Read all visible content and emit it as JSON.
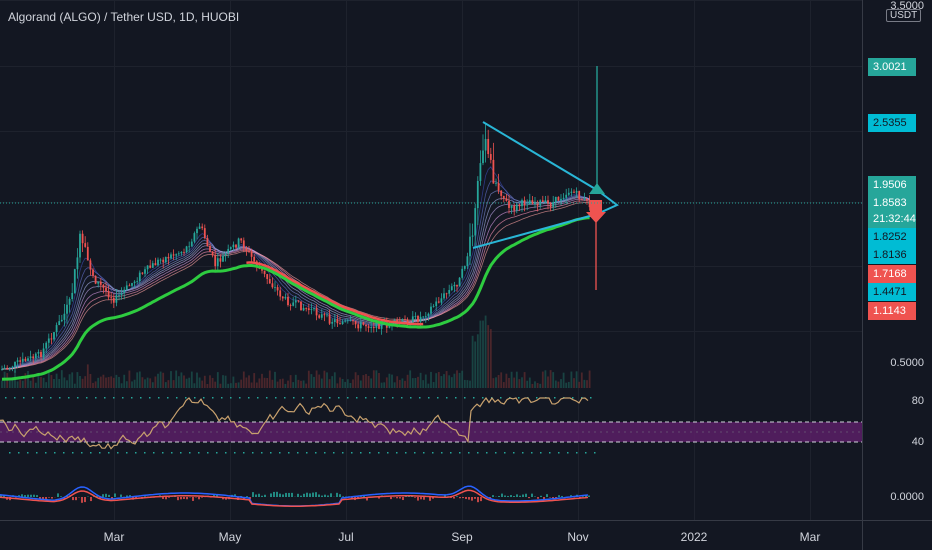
{
  "header": {
    "title": "Algorand (ALGO) / Tether USD, 1D, HUOBI"
  },
  "price_axis": {
    "top_label": "3.5000",
    "currency": "USDT",
    "label_0_5": "0.5000"
  },
  "price_badges": [
    {
      "value": "3.0021",
      "bg": "#26a69a",
      "fg": "#ffffff"
    },
    {
      "value": "2.5355",
      "bg": "#00bcd4",
      "fg": "#131722"
    },
    {
      "value": "1.9506",
      "bg": "#26a69a",
      "fg": "#ffffff"
    },
    {
      "value": "1.8583",
      "bg": "#26a69a",
      "fg": "#ffffff"
    },
    {
      "value": "21:32:44",
      "bg": "#26a69a",
      "fg": "#ffffff"
    },
    {
      "value": "1.8252",
      "bg": "#00bcd4",
      "fg": "#131722"
    },
    {
      "value": "1.8136",
      "bg": "#00bcd4",
      "fg": "#131722"
    },
    {
      "value": "1.7168",
      "bg": "#ef5350",
      "fg": "#ffffff"
    },
    {
      "value": "1.4471",
      "bg": "#00bcd4",
      "fg": "#131722"
    },
    {
      "value": "1.1143",
      "bg": "#ef5350",
      "fg": "#ffffff"
    }
  ],
  "rsi_axis": {
    "upper": "80",
    "lower": "40"
  },
  "macd_axis": {
    "zero": "0.0000"
  },
  "time_axis": [
    "Mar",
    "May",
    "Jul",
    "Sep",
    "Nov",
    "2022",
    "Mar"
  ],
  "colors": {
    "background": "#131722",
    "up": "#26a69a",
    "down": "#ef5350",
    "trend_line": "#29b6d6",
    "ma_green": "#2ecc40",
    "rsi_line": "#c8a16e",
    "rsi_band": "#5b1f66"
  }
}
